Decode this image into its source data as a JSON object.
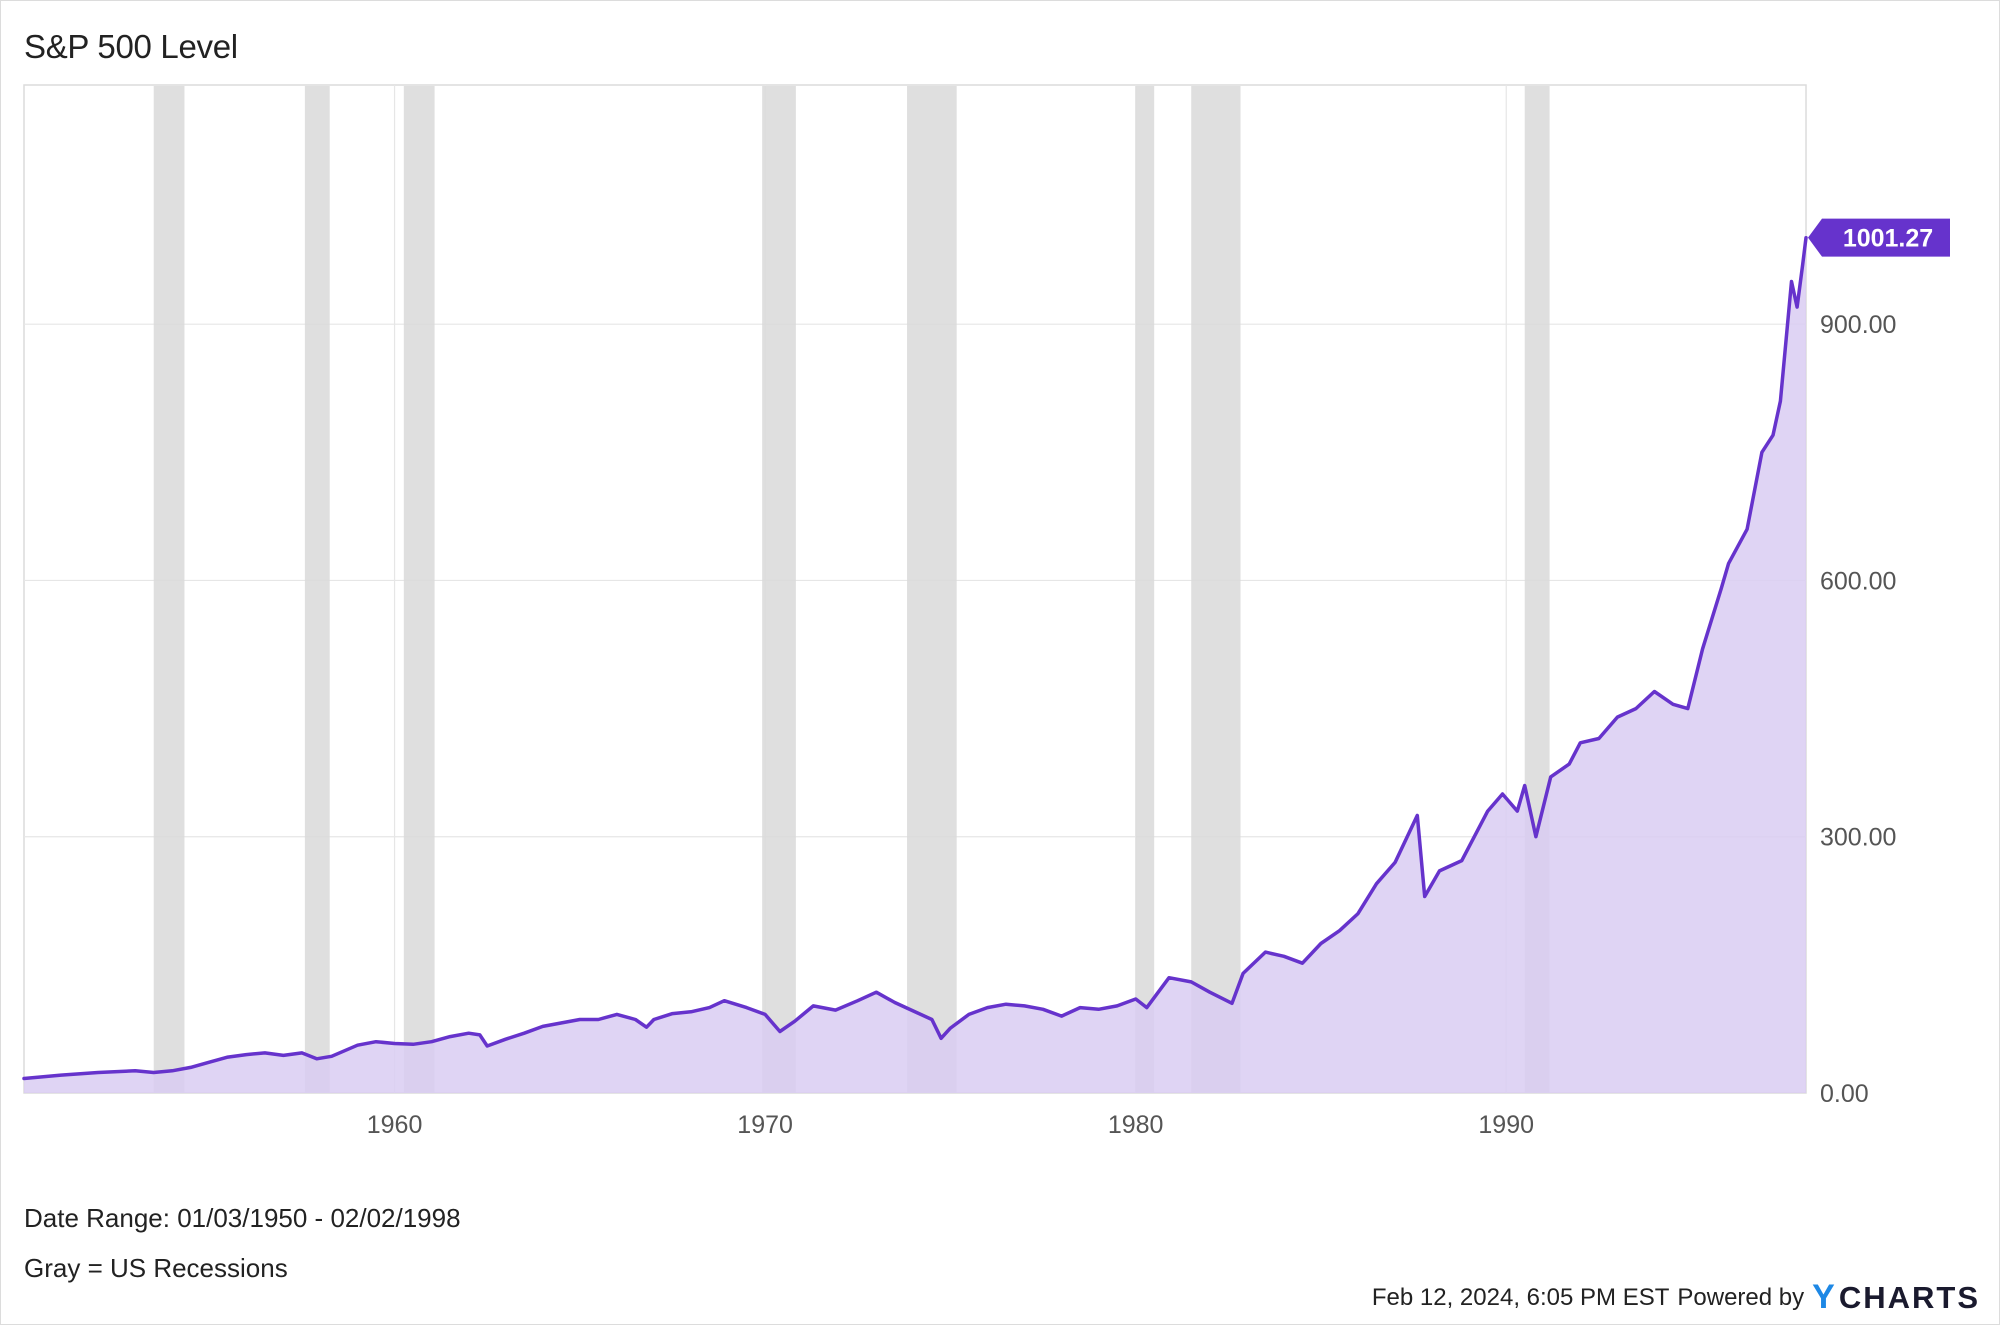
{
  "header": {
    "title": "S&P 500 Level"
  },
  "footer": {
    "date_range": "Date Range: 01/03/1950 - 02/02/1998",
    "recession_note": "Gray = US Recessions",
    "timestamp": "Feb 12, 2024, 6:05 PM EST",
    "powered_by": "Powered by",
    "brand_mark": "Y",
    "brand_rest": "CHARTS"
  },
  "chart_data": {
    "type": "area",
    "title": "S&P 500 Level",
    "xlabel": "",
    "ylabel": "",
    "xlim": [
      1950.0,
      1998.09
    ],
    "ylim": [
      0,
      1180
    ],
    "x_ticks": [
      1960,
      1970,
      1980,
      1990
    ],
    "x_tick_labels": [
      "1960",
      "1970",
      "1980",
      "1990"
    ],
    "y_ticks": [
      0,
      300,
      600,
      900
    ],
    "y_tick_labels": [
      "0.00",
      "300.00",
      "600.00",
      "900.00"
    ],
    "grid": true,
    "last_value": 1001.27,
    "last_value_label": "1001.27",
    "line_color": "#6633cc",
    "fill_color": "#d9ccf2",
    "recession_color": "#d9d9d9",
    "label_bg_color": "#6633cc",
    "recessions": [
      [
        1953.5,
        1954.33
      ],
      [
        1957.58,
        1958.25
      ],
      [
        1960.25,
        1961.08
      ],
      [
        1969.92,
        1970.83
      ],
      [
        1973.83,
        1975.17
      ],
      [
        1980.0,
        1980.5
      ],
      [
        1981.5,
        1982.83
      ],
      [
        1990.5,
        1991.17
      ]
    ],
    "series": [
      {
        "values": [
          [
            1950.0,
            17
          ],
          [
            1951.0,
            21
          ],
          [
            1952.0,
            24
          ],
          [
            1953.0,
            26
          ],
          [
            1953.5,
            24
          ],
          [
            1954.0,
            26
          ],
          [
            1954.5,
            30
          ],
          [
            1955.0,
            36
          ],
          [
            1955.5,
            42
          ],
          [
            1956.0,
            45
          ],
          [
            1956.5,
            47
          ],
          [
            1957.0,
            44
          ],
          [
            1957.5,
            47
          ],
          [
            1957.9,
            40
          ],
          [
            1958.3,
            43
          ],
          [
            1959.0,
            56
          ],
          [
            1959.5,
            60
          ],
          [
            1960.0,
            58
          ],
          [
            1960.5,
            57
          ],
          [
            1961.0,
            60
          ],
          [
            1961.5,
            66
          ],
          [
            1962.0,
            70
          ],
          [
            1962.3,
            68
          ],
          [
            1962.5,
            55
          ],
          [
            1963.0,
            63
          ],
          [
            1963.5,
            70
          ],
          [
            1964.0,
            78
          ],
          [
            1965.0,
            86
          ],
          [
            1965.5,
            86
          ],
          [
            1966.0,
            92
          ],
          [
            1966.5,
            86
          ],
          [
            1966.8,
            77
          ],
          [
            1967.0,
            86
          ],
          [
            1967.5,
            93
          ],
          [
            1968.0,
            95
          ],
          [
            1968.5,
            100
          ],
          [
            1968.9,
            108
          ],
          [
            1969.5,
            100
          ],
          [
            1970.0,
            92
          ],
          [
            1970.4,
            72
          ],
          [
            1970.8,
            84
          ],
          [
            1971.3,
            102
          ],
          [
            1971.9,
            97
          ],
          [
            1972.5,
            108
          ],
          [
            1973.0,
            118
          ],
          [
            1973.5,
            106
          ],
          [
            1974.0,
            96
          ],
          [
            1974.5,
            86
          ],
          [
            1974.75,
            64
          ],
          [
            1975.0,
            76
          ],
          [
            1975.5,
            92
          ],
          [
            1976.0,
            100
          ],
          [
            1976.5,
            104
          ],
          [
            1977.0,
            102
          ],
          [
            1977.5,
            98
          ],
          [
            1978.0,
            90
          ],
          [
            1978.5,
            100
          ],
          [
            1979.0,
            98
          ],
          [
            1979.5,
            102
          ],
          [
            1980.0,
            110
          ],
          [
            1980.3,
            100
          ],
          [
            1980.9,
            135
          ],
          [
            1981.5,
            130
          ],
          [
            1982.0,
            118
          ],
          [
            1982.6,
            105
          ],
          [
            1982.9,
            140
          ],
          [
            1983.5,
            165
          ],
          [
            1984.0,
            160
          ],
          [
            1984.5,
            152
          ],
          [
            1985.0,
            175
          ],
          [
            1985.5,
            190
          ],
          [
            1986.0,
            210
          ],
          [
            1986.5,
            245
          ],
          [
            1987.0,
            270
          ],
          [
            1987.6,
            325
          ],
          [
            1987.8,
            230
          ],
          [
            1988.2,
            260
          ],
          [
            1988.8,
            272
          ],
          [
            1989.5,
            330
          ],
          [
            1989.9,
            350
          ],
          [
            1990.3,
            330
          ],
          [
            1990.5,
            360
          ],
          [
            1990.8,
            300
          ],
          [
            1991.2,
            370
          ],
          [
            1991.7,
            385
          ],
          [
            1992.0,
            410
          ],
          [
            1992.5,
            415
          ],
          [
            1993.0,
            440
          ],
          [
            1993.5,
            450
          ],
          [
            1994.0,
            470
          ],
          [
            1994.5,
            455
          ],
          [
            1994.9,
            450
          ],
          [
            1995.3,
            520
          ],
          [
            1995.8,
            590
          ],
          [
            1996.0,
            620
          ],
          [
            1996.5,
            660
          ],
          [
            1996.9,
            750
          ],
          [
            1997.2,
            770
          ],
          [
            1997.4,
            810
          ],
          [
            1997.7,
            950
          ],
          [
            1997.85,
            920
          ],
          [
            1998.0,
            970
          ],
          [
            1998.09,
            1001.27
          ]
        ]
      }
    ]
  }
}
